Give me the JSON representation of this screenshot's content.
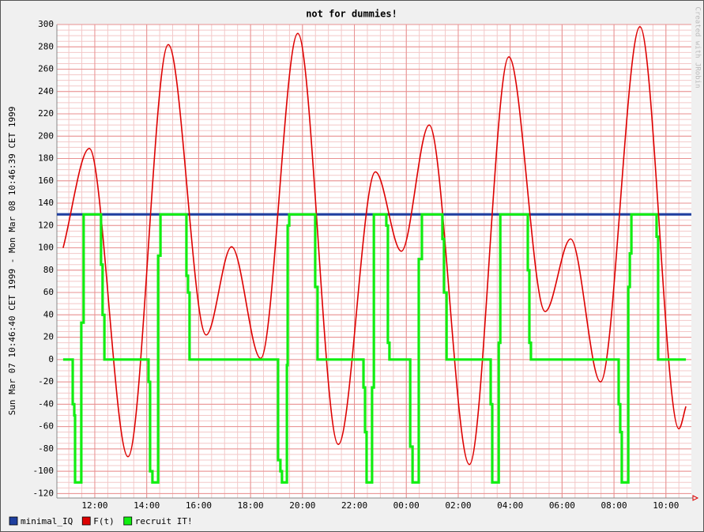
{
  "chart_data": {
    "type": "line",
    "title": "not for dummies!",
    "y_label": "Sun Mar 07 10:46:40 CET 1999 - Mon Mar 08 10:46:39 CET 1999",
    "watermark": "Created with JRobin",
    "xlim": [
      10.54,
      34.98
    ],
    "xticks": [
      {
        "value": 12,
        "label": "12:00"
      },
      {
        "value": 14,
        "label": "14:00"
      },
      {
        "value": 16,
        "label": "16:00"
      },
      {
        "value": 18,
        "label": "18:00"
      },
      {
        "value": 20,
        "label": "20:00"
      },
      {
        "value": 22,
        "label": "22:00"
      },
      {
        "value": 24,
        "label": "00:00"
      },
      {
        "value": 26,
        "label": "02:00"
      },
      {
        "value": 28,
        "label": "04:00"
      },
      {
        "value": 30,
        "label": "06:00"
      },
      {
        "value": 32,
        "label": "08:00"
      },
      {
        "value": 34,
        "label": "10:00"
      }
    ],
    "ylim": [
      -124,
      300
    ],
    "yticks": [
      300,
      280,
      260,
      240,
      220,
      200,
      180,
      160,
      140,
      120,
      100,
      80,
      60,
      40,
      20,
      0,
      -20,
      -40,
      -60,
      -80,
      -100,
      -120
    ],
    "grid": true,
    "series": [
      {
        "name": "minimal_IQ",
        "color": "#1f3f9f",
        "style": "line",
        "x": [
          10.54,
          34.98
        ],
        "values": [
          130,
          130
        ]
      },
      {
        "name": "F(t)",
        "color": "#dd0000",
        "style": "smooth",
        "x": [
          10.78,
          11.79,
          13.28,
          14.83,
          16.29,
          17.27,
          18.39,
          19.82,
          21.38,
          22.81,
          23.81,
          24.88,
          26.43,
          27.95,
          29.35,
          30.33,
          31.48,
          33.0,
          34.5,
          34.77
        ],
        "values": [
          100,
          189,
          -87,
          282,
          22,
          101,
          1,
          292,
          -76,
          168,
          97,
          210,
          -94,
          271,
          43,
          108,
          -20,
          298,
          -62,
          -42
        ]
      },
      {
        "name": "recruit IT!",
        "color": "#11ee11",
        "style": "step",
        "x": [
          10.78,
          11.15,
          11.21,
          11.24,
          11.48,
          11.57,
          12.24,
          12.3,
          12.37,
          14.07,
          14.13,
          14.22,
          14.44,
          14.53,
          15.53,
          15.59,
          15.65,
          19.06,
          19.15,
          19.21,
          19.4,
          19.43,
          19.49,
          20.49,
          20.58,
          22.35,
          22.41,
          22.47,
          22.68,
          22.75,
          23.23,
          23.29,
          23.35,
          24.15,
          24.24,
          24.48,
          24.6,
          25.39,
          25.45,
          25.55,
          27.25,
          27.31,
          27.56,
          27.62,
          28.68,
          28.74,
          28.8,
          32.18,
          32.24,
          32.3,
          32.55,
          32.61,
          32.67,
          33.64,
          33.7,
          34.77
        ],
        "values": [
          0,
          -40,
          -50,
          -110,
          33,
          130,
          85,
          40,
          0,
          -20,
          -100,
          -110,
          93,
          130,
          75,
          60,
          0,
          -90,
          -100,
          -110,
          -5,
          120,
          130,
          65,
          0,
          -25,
          -65,
          -110,
          -25,
          130,
          120,
          15,
          0,
          -78,
          -110,
          90,
          130,
          108,
          60,
          0,
          -40,
          -110,
          15,
          130,
          80,
          15,
          0,
          -40,
          -65,
          -110,
          65,
          95,
          130,
          110,
          0,
          0
        ]
      }
    ]
  }
}
